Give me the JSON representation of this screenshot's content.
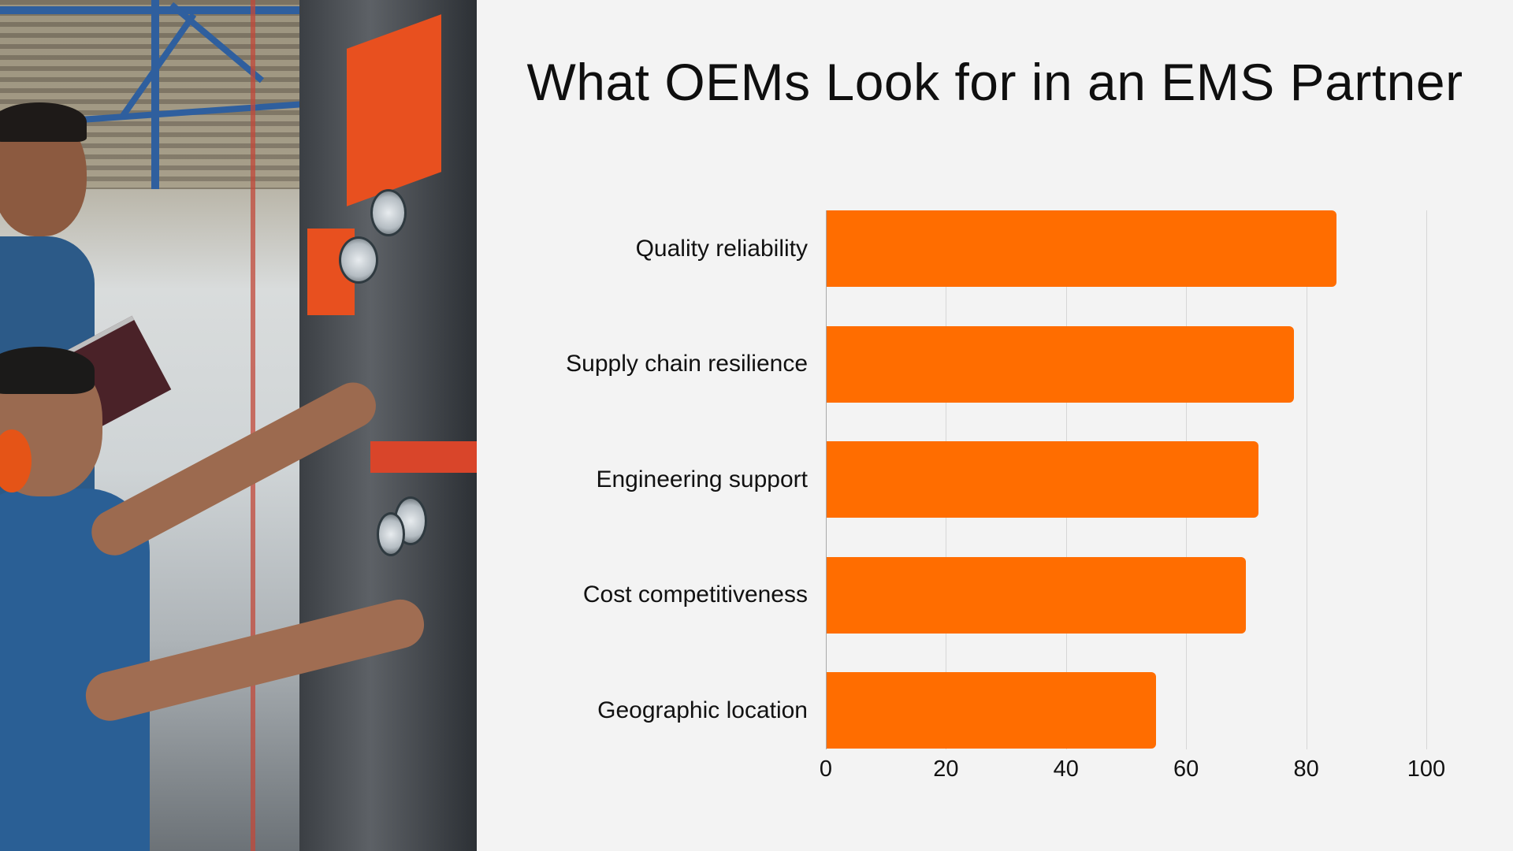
{
  "slide": {
    "title": "What OEMs Look for in an EMS Partner",
    "background_color": "#f3f3f3",
    "bar_color": "#ff6d00",
    "photo": "factory-workers-operating-machine"
  },
  "chart_data": {
    "type": "bar",
    "orientation": "horizontal",
    "title": "What OEMs Look for in an EMS Partner",
    "categories": [
      "Quality reliability",
      "Supply chain resilience",
      "Engineering support",
      "Cost competitiveness",
      "Geographic location"
    ],
    "values": [
      85,
      78,
      72,
      70,
      55
    ],
    "xlabel": "",
    "ylabel": "",
    "xlim": [
      0,
      100
    ],
    "xticks": [
      "0",
      "20",
      "40",
      "60",
      "80",
      "100"
    ],
    "grid": "vertical",
    "legend": "none",
    "color": "#ff6d00"
  }
}
